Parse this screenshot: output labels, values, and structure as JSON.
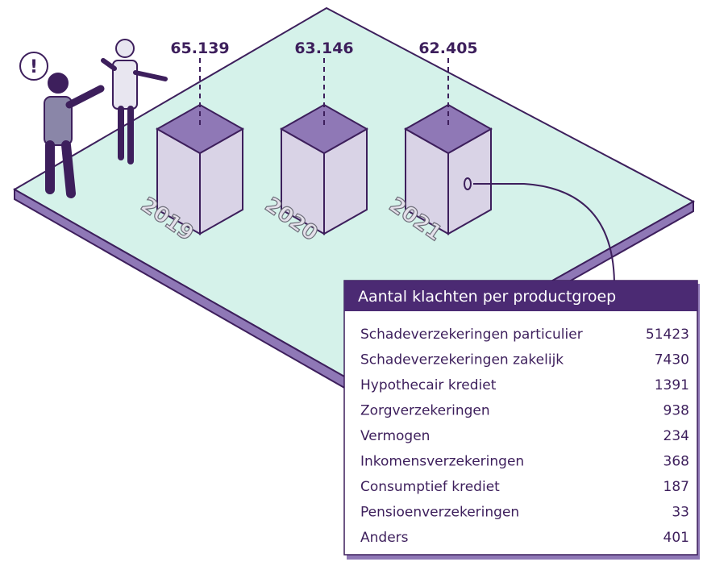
{
  "years": [
    {
      "year": "2019",
      "value": "65.139"
    },
    {
      "year": "2020",
      "value": "63.146"
    },
    {
      "year": "2021",
      "value": "62.405"
    }
  ],
  "alert": "!",
  "table": {
    "title": "Aantal klachten per productgroep",
    "rows": [
      [
        "Schadeverzekeringen particulier",
        51423
      ],
      [
        "Schadeverzekeringen zakelijk",
        7430
      ],
      [
        "Hypothecair krediet",
        1391
      ],
      [
        "Zorgverzekeringen",
        938
      ],
      [
        "Vermogen",
        234
      ],
      [
        "Inkomensverzekeringen",
        368
      ],
      [
        "Consumptief krediet",
        187
      ],
      [
        "Pensioenverzekeringen",
        33
      ],
      [
        "Anders",
        401
      ]
    ]
  }
}
